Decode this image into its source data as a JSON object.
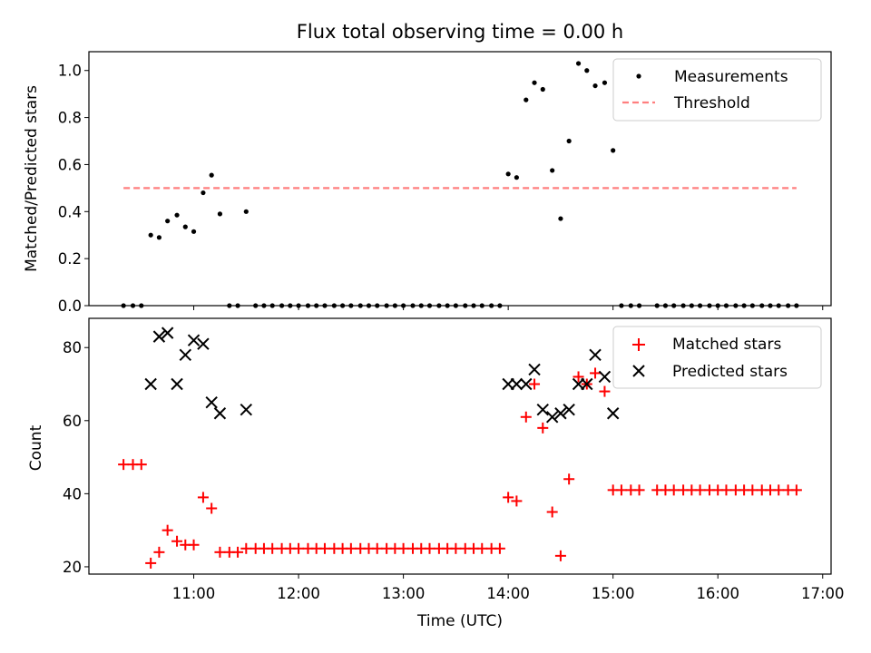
{
  "chart_data": [
    {
      "type": "scatter",
      "title": "Flux total observing time = 0.00 h",
      "xlabel": "",
      "ylabel": "Matched/Predicted stars",
      "ylim": [
        0.0,
        1.08
      ],
      "yticks": [
        0.0,
        0.2,
        0.4,
        0.6,
        0.8,
        1.0
      ],
      "ytick_labels": [
        "0.0",
        "0.2",
        "0.4",
        "0.6",
        "0.8",
        "1.0"
      ],
      "legend_position": "top-right",
      "legend": [
        "Measurements",
        "Threshold"
      ],
      "threshold": {
        "name": "Threshold",
        "value": 0.5,
        "x_range": [
          10.33,
          16.75
        ],
        "color": "#ff7f7f"
      },
      "measurements": {
        "name": "Measurements",
        "color": "#000000",
        "x": [
          10.33,
          10.42,
          10.5,
          10.59,
          10.67,
          10.75,
          10.84,
          10.92,
          11.0,
          11.09,
          11.17,
          11.25,
          11.34,
          11.42,
          11.5,
          11.59,
          11.67,
          11.75,
          11.84,
          11.92,
          12.0,
          12.09,
          12.17,
          12.25,
          12.34,
          12.42,
          12.5,
          12.59,
          12.67,
          12.75,
          12.84,
          12.92,
          13.0,
          13.09,
          13.17,
          13.25,
          13.34,
          13.42,
          13.5,
          13.59,
          13.67,
          13.75,
          13.84,
          13.92,
          14.0,
          14.08,
          14.17,
          14.25,
          14.33,
          14.42,
          14.5,
          14.58,
          14.67,
          14.75,
          14.83,
          14.92,
          15.0,
          15.08,
          15.17,
          15.25,
          15.42,
          15.5,
          15.58,
          15.67,
          15.75,
          15.83,
          15.92,
          16.0,
          16.08,
          16.17,
          16.25,
          16.33,
          16.42,
          16.5,
          16.58,
          16.67,
          16.75
        ],
        "y": [
          0,
          0,
          0,
          0.3,
          0.29,
          0.36,
          0.385,
          0.335,
          0.315,
          0.48,
          0.555,
          0.39,
          0,
          0,
          0.4,
          0,
          0,
          0,
          0,
          0,
          0,
          0,
          0,
          0,
          0,
          0,
          0,
          0,
          0,
          0,
          0,
          0,
          0,
          0,
          0,
          0,
          0,
          0,
          0,
          0,
          0,
          0,
          0,
          0,
          0.56,
          0.545,
          0.875,
          0.948,
          0.92,
          0.575,
          0.37,
          0.7,
          1.03,
          1.0,
          0.935,
          0.948,
          0.66,
          0,
          0,
          0,
          0,
          0,
          0,
          0,
          0,
          0,
          0,
          0,
          0,
          0,
          0,
          0,
          0,
          0,
          0,
          0,
          0
        ]
      }
    },
    {
      "type": "scatter",
      "title": "",
      "xlabel": "Time (UTC)",
      "ylabel": "Count",
      "ylim": [
        18,
        88
      ],
      "yticks": [
        20,
        40,
        60,
        80
      ],
      "ytick_labels": [
        "20",
        "40",
        "60",
        "80"
      ],
      "xlim": [
        10.0,
        17.08
      ],
      "xticks": [
        11,
        12,
        13,
        14,
        15,
        16,
        17
      ],
      "xtick_labels": [
        "11:00",
        "12:00",
        "13:00",
        "14:00",
        "15:00",
        "16:00",
        "17:00"
      ],
      "legend_position": "top-right",
      "legend": [
        "Matched stars",
        "Predicted stars"
      ],
      "series": [
        {
          "name": "Matched stars",
          "marker": "+",
          "color": "#ff0000",
          "x": [
            10.33,
            10.42,
            10.5,
            10.59,
            10.67,
            10.75,
            10.84,
            10.92,
            11.0,
            11.09,
            11.17,
            11.25,
            11.34,
            11.42,
            11.5,
            11.59,
            11.67,
            11.75,
            11.84,
            11.92,
            12.0,
            12.09,
            12.17,
            12.25,
            12.34,
            12.42,
            12.5,
            12.59,
            12.67,
            12.75,
            12.84,
            12.92,
            13.0,
            13.09,
            13.17,
            13.25,
            13.34,
            13.42,
            13.5,
            13.59,
            13.67,
            13.75,
            13.84,
            13.92,
            14.0,
            14.08,
            14.17,
            14.25,
            14.33,
            14.42,
            14.5,
            14.58,
            14.67,
            14.75,
            14.83,
            14.92,
            15.0,
            15.08,
            15.17,
            15.25,
            15.42,
            15.5,
            15.58,
            15.67,
            15.75,
            15.83,
            15.92,
            16.0,
            16.08,
            16.17,
            16.25,
            16.33,
            16.42,
            16.5,
            16.58,
            16.67,
            16.75
          ],
          "y": [
            48,
            48,
            48,
            21,
            24,
            30,
            27,
            26,
            26,
            39,
            36,
            24,
            24,
            24,
            25,
            25,
            25,
            25,
            25,
            25,
            25,
            25,
            25,
            25,
            25,
            25,
            25,
            25,
            25,
            25,
            25,
            25,
            25,
            25,
            25,
            25,
            25,
            25,
            25,
            25,
            25,
            25,
            25,
            25,
            39,
            38,
            61,
            70,
            58,
            35,
            23,
            44,
            72,
            70,
            73,
            68,
            41,
            41,
            41,
            41,
            41,
            41,
            41,
            41,
            41,
            41,
            41,
            41,
            41,
            41,
            41,
            41,
            41,
            41,
            41,
            41,
            41
          ]
        },
        {
          "name": "Predicted stars",
          "marker": "x",
          "color": "#000000",
          "x": [
            10.59,
            10.67,
            10.75,
            10.84,
            10.92,
            11.0,
            11.09,
            11.17,
            11.25,
            11.5,
            14.0,
            14.08,
            14.17,
            14.25,
            14.33,
            14.42,
            14.5,
            14.58,
            14.67,
            14.75,
            14.83,
            14.92,
            15.0
          ],
          "y": [
            70,
            83,
            84,
            70,
            78,
            82,
            81,
            65,
            62,
            63,
            70,
            70,
            70,
            74,
            63,
            61,
            62,
            63,
            70,
            70,
            78,
            72,
            62
          ]
        }
      ]
    }
  ]
}
